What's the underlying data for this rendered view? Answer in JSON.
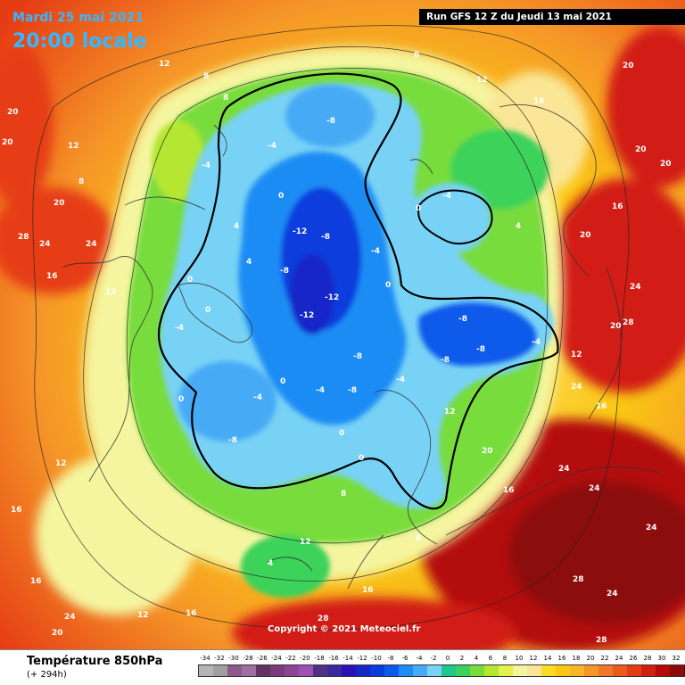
{
  "header": {
    "date": "Mardi 25 mai 2021",
    "local_time": "20:00 locale",
    "run_info": "Run GFS 12 Z du Jeudi 13 mai 2021"
  },
  "footer": {
    "title": "Température 850hPa",
    "subtitle": "(+ 294h)",
    "copyright": "Copyright © 2021 Meteociel.fr"
  },
  "legend": [
    {
      "label": "-34",
      "color": "#b4b4b4"
    },
    {
      "label": "-32",
      "color": "#a0a0a0"
    },
    {
      "label": "-30",
      "color": "#8c5a8c"
    },
    {
      "label": "-28",
      "color": "#a06ea0"
    },
    {
      "label": "-26",
      "color": "#643264"
    },
    {
      "label": "-24",
      "color": "#7a3c7a"
    },
    {
      "label": "-22",
      "color": "#8c4696"
    },
    {
      "label": "-20",
      "color": "#a050b4"
    },
    {
      "label": "-18",
      "color": "#503282"
    },
    {
      "label": "-16",
      "color": "#3c28a0"
    },
    {
      "label": "-14",
      "color": "#2814b4"
    },
    {
      "label": "-12",
      "color": "#1428c8"
    },
    {
      "label": "-10",
      "color": "#0a3cdc"
    },
    {
      "label": "-8",
      "color": "#0a5aeb"
    },
    {
      "label": "-6",
      "color": "#1e8cf5"
    },
    {
      "label": "-4",
      "color": "#46aaf5"
    },
    {
      "label": "-2",
      "color": "#78d2f5"
    },
    {
      "label": "0",
      "color": "#1ec88c"
    },
    {
      "label": "2",
      "color": "#3cd25a"
    },
    {
      "label": "4",
      "color": "#78dc3c"
    },
    {
      "label": "6",
      "color": "#b4e632"
    },
    {
      "label": "8",
      "color": "#e6f050"
    },
    {
      "label": "10",
      "color": "#f5f5a0"
    },
    {
      "label": "12",
      "color": "#fae696"
    },
    {
      "label": "14",
      "color": "#fadc28"
    },
    {
      "label": "16",
      "color": "#fac814"
    },
    {
      "label": "18",
      "color": "#fab428"
    },
    {
      "label": "20",
      "color": "#f59628"
    },
    {
      "label": "22",
      "color": "#f07828"
    },
    {
      "label": "24",
      "color": "#eb5a1e"
    },
    {
      "label": "26",
      "color": "#e63c14"
    },
    {
      "label": "28",
      "color": "#d21e14"
    },
    {
      "label": "30",
      "color": "#b40a0a"
    },
    {
      "label": "32",
      "color": "#8c0a0a"
    },
    {
      "label": "34",
      "color": "#500505"
    }
  ],
  "isotherm_labels": [
    "-12",
    "-12",
    "-12",
    "-8",
    "-8",
    "-8",
    "-8",
    "-8",
    "-8",
    "-8",
    "-8",
    "-8",
    "-4",
    "-4",
    "-4",
    "-4",
    "-4",
    "-4",
    "-4",
    "-4",
    "-4",
    "0",
    "0",
    "0",
    "0",
    "0",
    "0",
    "0",
    "0",
    "0",
    "0",
    "4",
    "4",
    "4",
    "4",
    "8",
    "8",
    "8",
    "8",
    "8",
    "12",
    "12",
    "12",
    "12",
    "12",
    "12",
    "12",
    "12",
    "12",
    "16",
    "16",
    "16",
    "16",
    "16",
    "16",
    "16",
    "16",
    "16",
    "20",
    "20",
    "20",
    "20",
    "20",
    "20",
    "20",
    "20",
    "20",
    "20",
    "24",
    "24",
    "24",
    "24",
    "24",
    "24",
    "24",
    "24",
    "24",
    "28",
    "28",
    "28",
    "28",
    "28"
  ]
}
